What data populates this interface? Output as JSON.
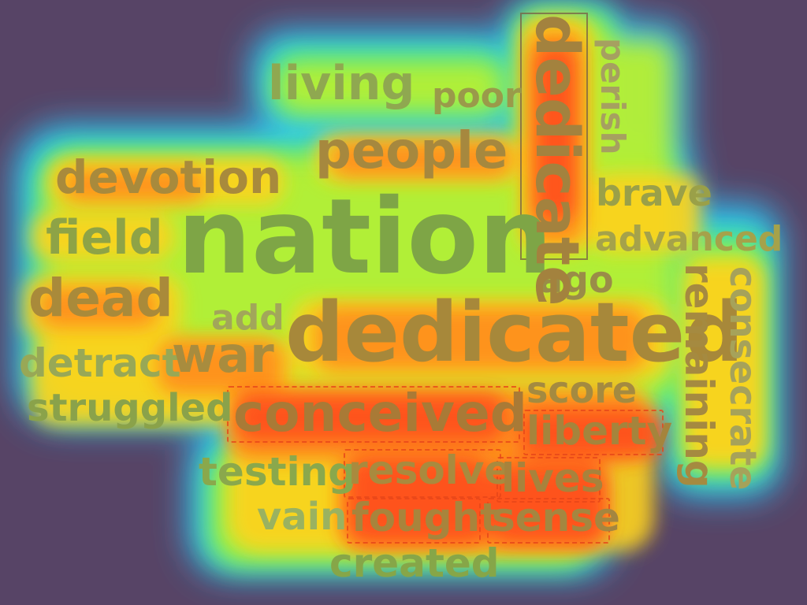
{
  "canvas": {
    "background": "#574466",
    "heat_colors": [
      "#ff4a1a",
      "#ff8c1a",
      "#ffd21a",
      "#b8f032",
      "#32e6a0",
      "#2ec8ff"
    ]
  },
  "words": {
    "nation": "nation",
    "dedicated": "dedicated",
    "dedicate": "dedicate",
    "people": "people",
    "devotion": "devotion",
    "living": "living",
    "poor": "poor",
    "perish": "perish",
    "brave": "brave",
    "advanced": "advanced",
    "field": "field",
    "dead": "dead",
    "add": "add",
    "ago": "ago",
    "remaining": "remaining",
    "consecrate": "consecrate",
    "detract": "detract",
    "war": "war",
    "score": "score",
    "struggled": "struggled",
    "conceived": "conceived",
    "liberty": "liberty",
    "testing": "testing",
    "resolve": "resolve",
    "lives": "lives",
    "vain": "vain",
    "fought": "fought",
    "sense": "sense",
    "created": "created"
  }
}
